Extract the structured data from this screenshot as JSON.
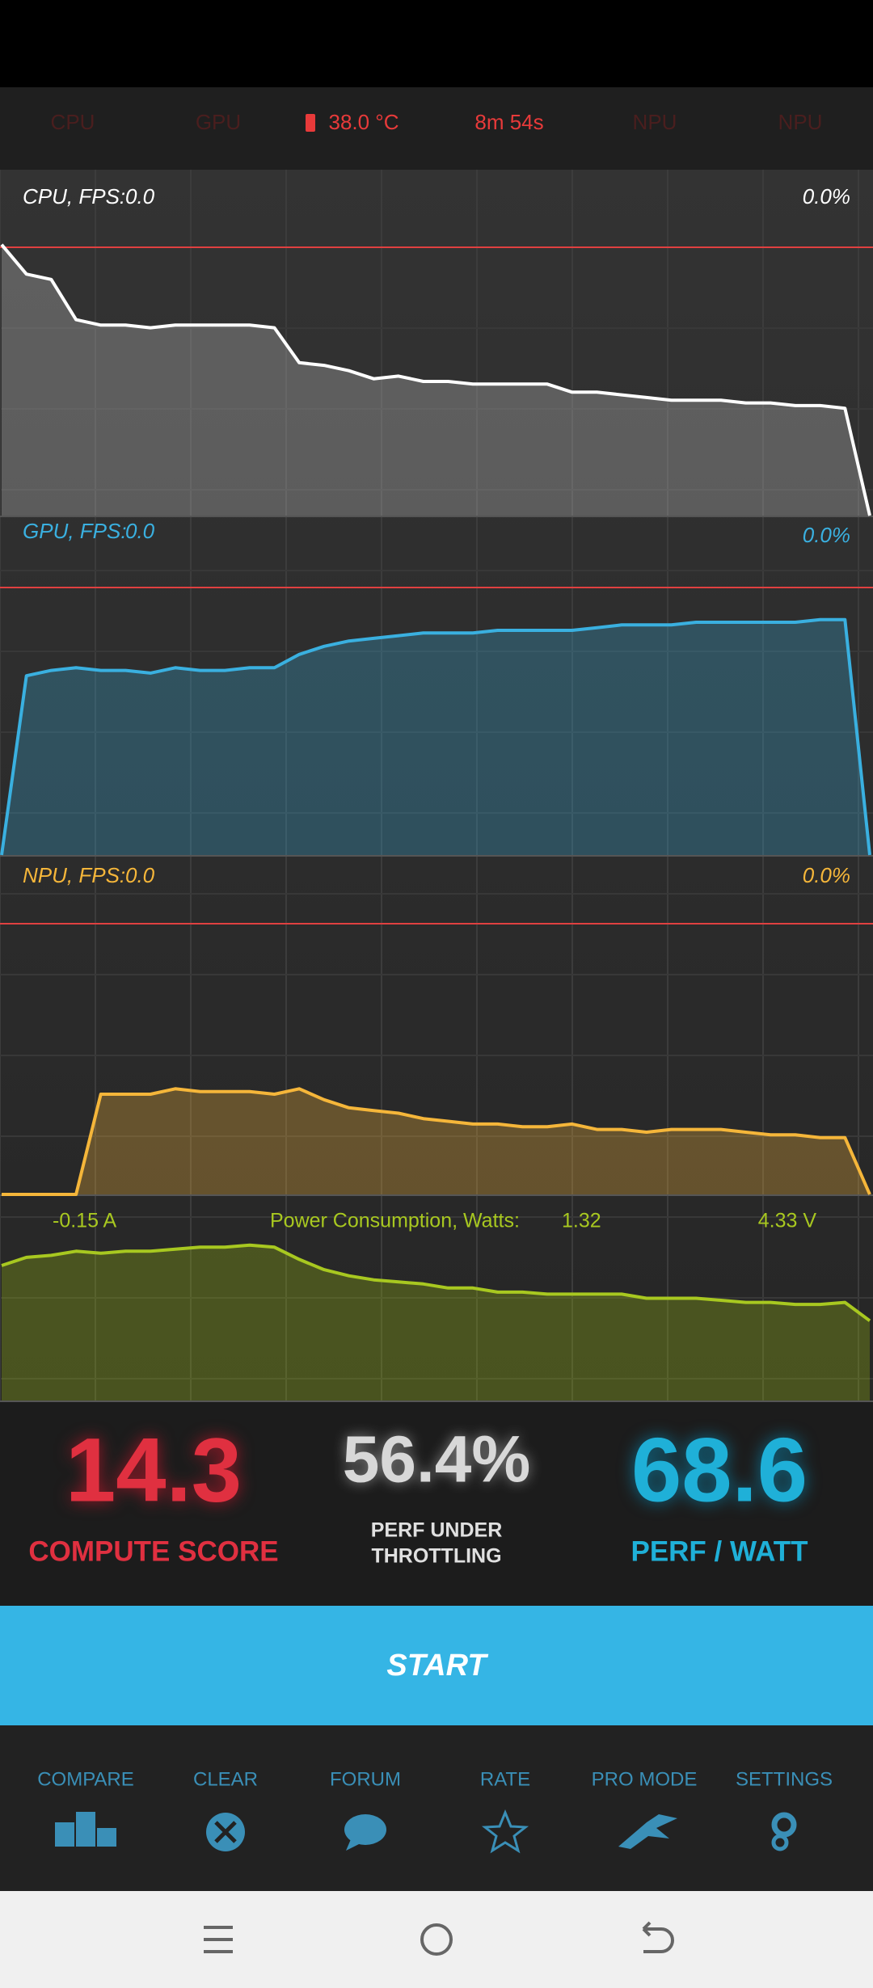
{
  "status_bar": {
    "items": [
      "CPU",
      "GPU",
      "38.0 °C",
      "8m 54s",
      "NPU",
      "NPU"
    ]
  },
  "graphs": [
    {
      "label": "CPU, FPS:",
      "fps": "0.0",
      "percent": "0.0%",
      "values": [
        101,
        90,
        88,
        73,
        71,
        71,
        70,
        71,
        71,
        71,
        71,
        70,
        57,
        56,
        54,
        51,
        52,
        50,
        50,
        49,
        49,
        49,
        49,
        46,
        46,
        45,
        44,
        43,
        43,
        43,
        42,
        42,
        41,
        41,
        40,
        0
      ]
    },
    {
      "label": "GPU, FPS:",
      "fps": "0.0",
      "percent": "0.0%",
      "values": [
        0,
        67,
        69,
        70,
        69,
        69,
        68,
        70,
        69,
        69,
        70,
        70,
        75,
        78,
        80,
        81,
        82,
        83,
        83,
        83,
        84,
        84,
        84,
        84,
        85,
        86,
        86,
        86,
        87,
        87,
        87,
        87,
        87,
        88,
        88,
        0
      ]
    },
    {
      "label": "NPU, FPS:",
      "fps": "0.0",
      "percent": "0.0%",
      "values": [
        0,
        0,
        0,
        0,
        37,
        37,
        37,
        39,
        38,
        38,
        38,
        37,
        39,
        35,
        32,
        31,
        30,
        28,
        27,
        26,
        26,
        25,
        25,
        26,
        24,
        24,
        23,
        24,
        24,
        24,
        23,
        22,
        22,
        21,
        21,
        0
      ]
    }
  ],
  "power": {
    "current": "-0.15 A",
    "label": "Power Consumption, Watts:",
    "watts": "1.32",
    "voltage": "4.33 V",
    "values": [
      66,
      70,
      71,
      73,
      72,
      73,
      73,
      74,
      75,
      75,
      76,
      75,
      69,
      64,
      61,
      59,
      58,
      57,
      55,
      55,
      53,
      53,
      52,
      52,
      52,
      52,
      50,
      50,
      50,
      49,
      48,
      48,
      47,
      47,
      48,
      39
    ]
  },
  "scores": [
    {
      "value": "14.3",
      "label": "COMPUTE SCORE"
    },
    {
      "value": "56.4%",
      "label_lines": [
        "PERF UNDER",
        "THROTTLING"
      ]
    },
    {
      "value": "68.6",
      "label": "PERF / WATT"
    }
  ],
  "start": "START",
  "nav": [
    "COMPARE",
    "CLEAR",
    "FORUM",
    "RATE",
    "PRO MODE",
    "SETTINGS"
  ]
}
